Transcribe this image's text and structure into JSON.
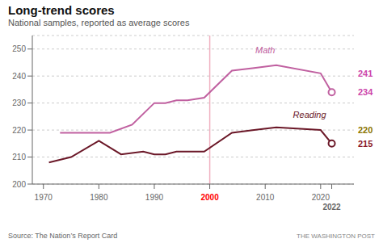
{
  "chart_data": {
    "type": "line",
    "title": "Long-trend scores",
    "subtitle": "National samples, reported as average scores",
    "source": "Source: The Nation’s Report Card",
    "attribution": "THE WASHINGTON POST",
    "series": [
      {
        "name": "Math",
        "color": "#c060a0",
        "x": [
          1973,
          1978,
          1982,
          1986,
          1990,
          1992,
          1994,
          1996,
          1999,
          2004,
          2008,
          2012,
          2020,
          2022
        ],
        "values": [
          219,
          219,
          219,
          222,
          230,
          230,
          231,
          231,
          232,
          242,
          243,
          244,
          241,
          234
        ]
      },
      {
        "name": "Reading",
        "color": "#6b1828",
        "x": [
          1971,
          1975,
          1980,
          1984,
          1988,
          1990,
          1992,
          1994,
          1996,
          1999,
          2004,
          2008,
          2012,
          2020,
          2022
        ],
        "values": [
          208,
          210,
          216,
          211,
          212,
          211,
          211,
          212,
          212,
          212,
          219,
          220,
          221,
          220,
          215
        ]
      }
    ],
    "xlim": [
      1968,
      2026
    ],
    "xticks": [
      1970,
      1980,
      1990,
      2000,
      2010,
      2020,
      2022
    ],
    "ylim": [
      200,
      255
    ],
    "yticks": [
      200,
      210,
      220,
      230,
      240,
      250
    ],
    "grid": true,
    "reference_lines": [
      {
        "x": 2000,
        "color": "#f0b0c0"
      }
    ],
    "annotations": [
      {
        "text": "Math",
        "x": 2010,
        "y": 247,
        "color": "#c060a0"
      },
      {
        "text": "Reading",
        "x": 2018,
        "y": 223,
        "color": "#6b1828"
      }
    ],
    "end_labels": [
      {
        "value": 241,
        "color": "#cc44aa"
      },
      {
        "value": 234,
        "color": "#cc44aa"
      },
      {
        "value": 220,
        "color": "#8b7500"
      },
      {
        "value": 215,
        "color": "#8b1828"
      }
    ]
  }
}
